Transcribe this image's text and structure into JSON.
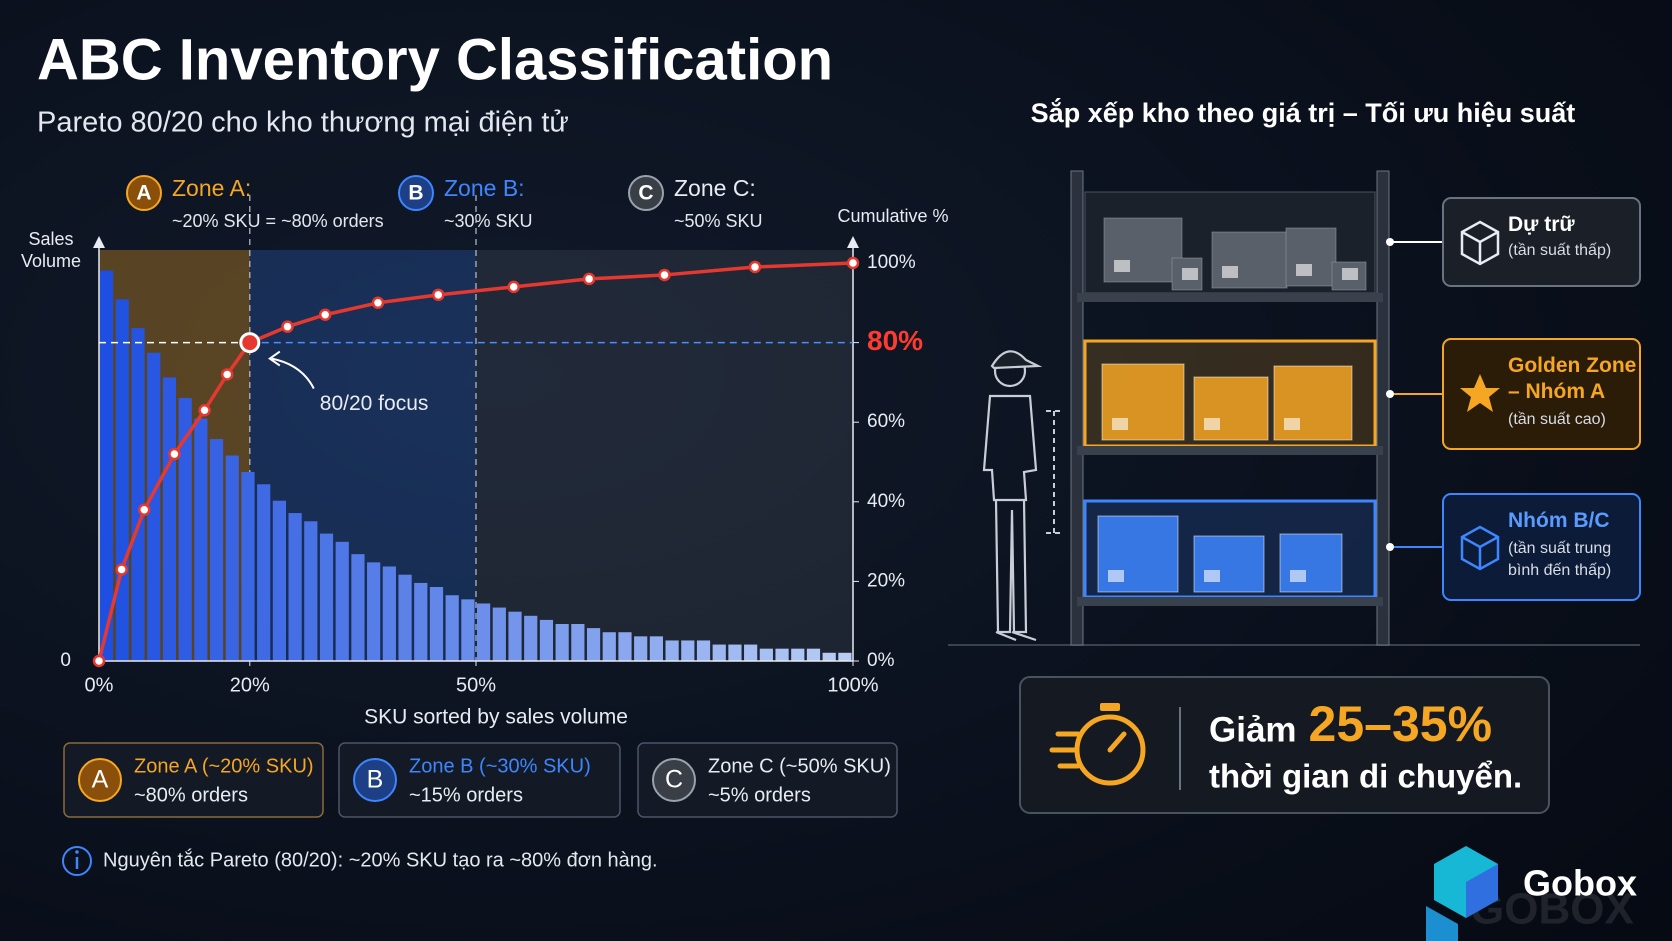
{
  "title": "ABC Inventory Classification",
  "subtitle": "Pareto 80/20 cho kho thương mại điện tử",
  "chart_data": {
    "type": "pareto",
    "y_label": "Sales Volume",
    "y2_label": "Cumulative %",
    "x_label": "SKU sorted by sales volume",
    "xlim": [
      0,
      100
    ],
    "xticks": [
      {
        "value": 0,
        "label": "0%"
      },
      {
        "value": 20,
        "label": "20%"
      },
      {
        "value": 50,
        "label": "50%"
      },
      {
        "value": 100,
        "label": "100%"
      }
    ],
    "ylim": [
      0,
      100
    ],
    "yticks": [
      0
    ],
    "y2lim": [
      0,
      100
    ],
    "y2ticks": [
      {
        "value": 0,
        "label": "0%"
      },
      {
        "value": 20,
        "label": "20%"
      },
      {
        "value": 40,
        "label": "40%"
      },
      {
        "value": 60,
        "label": "60%"
      },
      {
        "value": 80,
        "label": "80%"
      },
      {
        "value": 100,
        "label": "100%"
      }
    ],
    "bars": [
      95,
      88,
      81,
      75,
      69,
      64,
      59,
      54,
      50,
      46,
      43,
      39,
      36,
      34,
      31,
      29,
      26,
      24,
      23,
      21,
      19,
      18,
      16,
      15,
      14,
      13,
      12,
      11,
      10,
      9,
      9,
      8,
      7,
      7,
      6,
      6,
      5,
      5,
      5,
      4,
      4,
      4,
      3,
      3,
      3,
      3,
      2,
      2
    ],
    "bar_colors": [
      "#1f4fe0",
      "#b7cdf5"
    ],
    "cumulative": {
      "color": "#e5392f",
      "x": [
        0,
        3,
        6,
        10,
        14,
        17,
        20,
        25,
        30,
        37,
        45,
        55,
        65,
        75,
        87,
        100
      ],
      "y": [
        0,
        23,
        38,
        52,
        63,
        72,
        80,
        84,
        87,
        90,
        92,
        94,
        96,
        97,
        99,
        100
      ]
    },
    "annotation": {
      "text": "80/20 focus",
      "x": 20,
      "y": 80
    },
    "zones": [
      {
        "letter": "A",
        "name": "Zone A:",
        "desc": "~20% SKU = ~80% orders",
        "card_title": "Zone A (~20% SKU)",
        "card_desc": "~80% orders",
        "color": "#f5a623",
        "start": 0,
        "end": 20
      },
      {
        "letter": "B",
        "name": "Zone B:",
        "desc": "~30% SKU",
        "card_title": "Zone B (~30% SKU)",
        "card_desc": "~15% orders",
        "color": "#3d86ff",
        "start": 20,
        "end": 50
      },
      {
        "letter": "C",
        "name": "Zone C:",
        "desc": "~50% SKU",
        "card_title": "Zone C (~50% SKU)",
        "card_desc": "~5% orders",
        "color": "#9aa3ad",
        "start": 50,
        "end": 100
      }
    ]
  },
  "note": "Nguyên tắc Pareto (80/20): ~20% SKU tạo ra ~80% đơn hàng.",
  "warehouse": {
    "title": "Sắp xếp kho theo giá trị – Tối ưu hiệu suất",
    "shelves": [
      {
        "title": "Dự trữ",
        "desc": "(tần suất thấp)",
        "color": "#aeb4bc"
      },
      {
        "title": "Golden Zone – Nhóm A",
        "desc": "(tần suất cao)",
        "color": "#f5a623"
      },
      {
        "title": "Nhóm B/C",
        "desc": "(tần suất trung bình đến thấp)",
        "color": "#3d86ff"
      }
    ]
  },
  "result": {
    "prefix": "Giảm",
    "highlight": "25–35%",
    "suffix": "thời gian di chuyển."
  },
  "logo": {
    "name": "Gobox",
    "watermark": "GOBOX"
  }
}
